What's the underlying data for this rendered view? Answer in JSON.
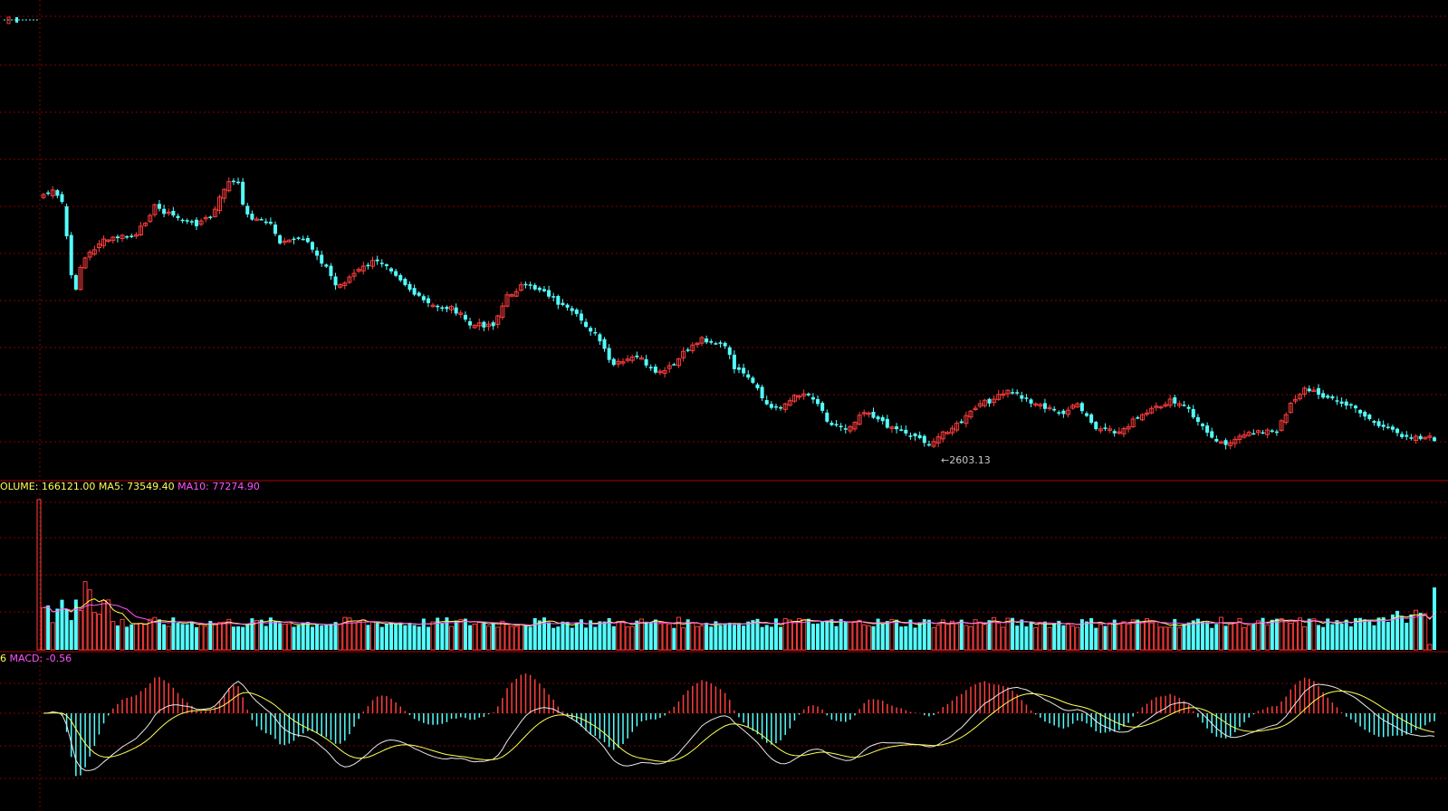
{
  "colors": {
    "background": "#000000",
    "up": "#ff3d3d",
    "down": "#54ffff",
    "grid": "#8b0000",
    "separator": "#b00000",
    "volume_ma5": "#ffff55",
    "volume_ma10": "#ff55ff",
    "dif_line": "#e8e8e8",
    "dea_line": "#ffff55",
    "volume_label": "#ffff55",
    "macd_label": "#ff55ff",
    "low_label": "#c8c8c8"
  },
  "legends": {
    "volume": {
      "volume_text": "OLUME: 166121.00",
      "ma5_text": "MA5: 73549.40",
      "ma10_text": "MA10: 77274.90"
    },
    "macd": {
      "prefix_text": "6",
      "macd_text": "MACD: -0.56"
    },
    "low_marker": "←2603.13"
  },
  "chart_data": [
    {
      "type": "candlestick",
      "panel": "price",
      "y_range": [
        2530,
        3130
      ],
      "low_value": 2603.13,
      "last_close": 2633,
      "grid": true
    },
    {
      "type": "bar",
      "panel": "volume",
      "last_volume": 166121.0,
      "ma5": 73549.4,
      "ma10": 77274.9,
      "grid": true
    },
    {
      "type": "line",
      "panel": "macd",
      "macd": -0.56,
      "series_lines": [
        "DIF",
        "DEA"
      ],
      "histogram": true
    }
  ]
}
